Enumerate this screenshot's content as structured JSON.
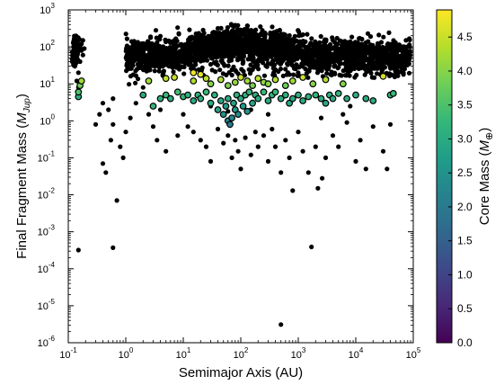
{
  "chart_data": {
    "type": "scatter",
    "xlabel": "Semimajor Axis (AU)",
    "ylabel_main": "Final Fragment Mass (",
    "ylabel_sym": "M",
    "ylabel_sub": "Jup",
    "ylabel_close": ")",
    "xscale": "log",
    "yscale": "log",
    "xlim": [
      0.1,
      100000
    ],
    "ylim": [
      1e-06,
      1000
    ],
    "grid": false,
    "x_ticks": [
      {
        "base": "10",
        "exp": "-1"
      },
      {
        "base": "10",
        "exp": "0"
      },
      {
        "base": "10",
        "exp": "1"
      },
      {
        "base": "10",
        "exp": "2"
      },
      {
        "base": "10",
        "exp": "3"
      },
      {
        "base": "10",
        "exp": "4"
      },
      {
        "base": "10",
        "exp": "5"
      }
    ],
    "y_ticks": [
      {
        "base": "10",
        "exp": "-6"
      },
      {
        "base": "10",
        "exp": "-5"
      },
      {
        "base": "10",
        "exp": "-4"
      },
      {
        "base": "10",
        "exp": "-3"
      },
      {
        "base": "10",
        "exp": "-2"
      },
      {
        "base": "10",
        "exp": "-1"
      },
      {
        "base": "10",
        "exp": "0"
      },
      {
        "base": "10",
        "exp": "1"
      },
      {
        "base": "10",
        "exp": "2"
      },
      {
        "base": "10",
        "exp": "3"
      }
    ],
    "colorbar": {
      "label_main": "Core Mass (",
      "label_sym": "M",
      "label_sub": "⊕",
      "label_close": ")",
      "range": [
        0,
        4.9
      ],
      "ticks": [
        "0.0",
        "0.5",
        "1.0",
        "1.5",
        "2.0",
        "2.5",
        "3.0",
        "3.5",
        "4.0",
        "4.5"
      ],
      "colormap": "viridis",
      "colors": [
        "#440154",
        "#482878",
        "#3e4989",
        "#31688e",
        "#26828e",
        "#1f9e89",
        "#35b779",
        "#6ece58",
        "#b5de2b",
        "#fde725"
      ]
    },
    "series": [
      {
        "points_no_core": [
          [
            0.15,
            0.00032
          ],
          [
            0.6,
            0.00037
          ],
          [
            500,
            3.1e-06
          ],
          [
            1700,
            0.00039
          ],
          [
            0.4,
            0.07
          ],
          [
            0.45,
            0.04
          ],
          [
            0.7,
            0.007
          ],
          [
            0.9,
            0.1
          ],
          [
            0.55,
            0.3
          ],
          [
            0.6,
            0.8
          ],
          [
            0.8,
            0.2
          ],
          [
            1.0,
            0.5
          ],
          [
            1.2,
            1.2
          ],
          [
            0.35,
            1.5
          ],
          [
            0.4,
            3
          ],
          [
            0.5,
            2
          ],
          [
            0.6,
            4
          ],
          [
            0.3,
            0.8
          ],
          [
            1.5,
            3
          ],
          [
            2.0,
            8
          ],
          [
            2.5,
            1.5
          ],
          [
            3,
            0.7
          ],
          [
            4,
            2
          ],
          [
            3.5,
            0.3
          ],
          [
            5,
            0.15
          ],
          [
            8,
            0.4
          ],
          [
            10,
            1.5
          ],
          [
            12,
            0.7
          ],
          [
            15,
            0.5
          ],
          [
            20,
            0.3
          ],
          [
            25,
            0.2
          ],
          [
            30,
            0.08
          ],
          [
            40,
            0.6
          ],
          [
            50,
            0.25
          ],
          [
            60,
            0.4
          ],
          [
            70,
            0.1
          ],
          [
            80,
            0.3
          ],
          [
            90,
            0.15
          ],
          [
            100,
            0.05
          ],
          [
            120,
            0.35
          ],
          [
            150,
            0.12
          ],
          [
            180,
            0.5
          ],
          [
            200,
            0.2
          ],
          [
            250,
            0.4
          ],
          [
            300,
            0.08
          ],
          [
            350,
            0.6
          ],
          [
            400,
            0.2
          ],
          [
            500,
            0.04
          ],
          [
            600,
            0.3
          ],
          [
            700,
            0.1
          ],
          [
            800,
            0.013
          ],
          [
            1000,
            0.5
          ],
          [
            1200,
            0.15
          ],
          [
            1500,
            0.04
          ],
          [
            2000,
            0.2
          ],
          [
            2200,
            0.015
          ],
          [
            2600,
            0.028
          ],
          [
            3000,
            0.1
          ],
          [
            4000,
            0.4
          ],
          [
            5000,
            0.2
          ],
          [
            7000,
            0.9
          ],
          [
            10000,
            0.08
          ],
          [
            12000,
            0.3
          ],
          [
            15000,
            0.05
          ],
          [
            20000,
            0.7
          ],
          [
            30000,
            0.15
          ],
          [
            35000,
            0.05
          ],
          [
            40000,
            0.8
          ],
          [
            6000,
            1.5
          ],
          [
            8000,
            2.5
          ],
          [
            2500,
            1.2
          ],
          [
            300,
            1.5
          ],
          [
            150,
            2
          ],
          [
            60,
            1.8
          ],
          [
            30,
            2.5
          ],
          [
            0.17,
            80
          ],
          [
            0.16,
            40
          ],
          [
            0.15,
            20
          ],
          [
            0.14,
            60
          ],
          [
            0.13,
            30
          ],
          [
            0.18,
            150
          ],
          [
            0.17,
            120
          ],
          [
            0.16,
            100
          ],
          [
            0.14,
            12
          ],
          [
            0.15,
            8
          ],
          [
            0.18,
            60
          ],
          [
            0.19,
            90
          ],
          [
            0.13,
            50
          ]
        ],
        "points_core": [
          [
            0.15,
            4.5,
            3.0
          ],
          [
            0.16,
            9,
            3.8
          ],
          [
            0.15,
            6,
            3.5
          ],
          [
            0.17,
            12,
            4.2
          ],
          [
            2,
            5,
            3.0
          ],
          [
            3,
            2.5,
            3.2
          ],
          [
            4,
            4,
            3.1
          ],
          [
            5,
            5,
            3.3
          ],
          [
            6,
            4,
            3.0
          ],
          [
            8,
            6,
            3.4
          ],
          [
            10,
            4.5,
            3.2
          ],
          [
            12,
            5,
            3.1
          ],
          [
            15,
            3.5,
            3.0
          ],
          [
            18,
            5,
            3.2
          ],
          [
            20,
            4,
            3.1
          ],
          [
            25,
            6,
            3.3
          ],
          [
            30,
            3,
            3.0
          ],
          [
            35,
            5,
            3.1
          ],
          [
            40,
            2,
            2.8
          ],
          [
            45,
            3.5,
            2.9
          ],
          [
            50,
            1.5,
            2.5
          ],
          [
            55,
            2.5,
            2.7
          ],
          [
            60,
            1,
            2.2
          ],
          [
            60,
            4,
            3.0
          ],
          [
            65,
            0.8,
            2.0
          ],
          [
            70,
            1.2,
            2.3
          ],
          [
            75,
            3,
            2.8
          ],
          [
            80,
            2,
            2.6
          ],
          [
            85,
            5,
            3.1
          ],
          [
            90,
            1.5,
            2.4
          ],
          [
            100,
            4,
            3.0
          ],
          [
            110,
            2.5,
            2.7
          ],
          [
            120,
            5,
            3.1
          ],
          [
            130,
            1.8,
            2.5
          ],
          [
            140,
            6,
            3.2
          ],
          [
            160,
            3,
            2.9
          ],
          [
            180,
            5,
            3.1
          ],
          [
            200,
            4,
            3.0
          ],
          [
            250,
            6,
            3.3
          ],
          [
            300,
            3.5,
            3.0
          ],
          [
            350,
            5,
            3.2
          ],
          [
            400,
            6,
            3.3
          ],
          [
            500,
            4,
            3.0
          ],
          [
            600,
            5,
            3.1
          ],
          [
            700,
            3,
            2.9
          ],
          [
            800,
            4,
            3.0
          ],
          [
            1000,
            5,
            3.1
          ],
          [
            1200,
            3.5,
            3.0
          ],
          [
            1500,
            4.5,
            3.1
          ],
          [
            2000,
            5,
            3.2
          ],
          [
            2500,
            4,
            3.0
          ],
          [
            3000,
            3,
            2.9
          ],
          [
            3500,
            5,
            3.1
          ],
          [
            4000,
            4,
            3.0
          ],
          [
            5000,
            5.5,
            3.2
          ],
          [
            7000,
            4,
            3.0
          ],
          [
            10000,
            5,
            3.1
          ],
          [
            15000,
            4,
            3.0
          ],
          [
            20000,
            3.5,
            3.0
          ],
          [
            40000,
            5,
            3.2
          ],
          [
            45000,
            5.5,
            3.3
          ],
          [
            5,
            14,
            4.4
          ],
          [
            7,
            15,
            4.5
          ],
          [
            15,
            12,
            4.3
          ],
          [
            25,
            14,
            4.4
          ],
          [
            30,
            10,
            4.0
          ],
          [
            45,
            13,
            4.3
          ],
          [
            60,
            9,
            3.9
          ],
          [
            80,
            11,
            4.1
          ],
          [
            100,
            15,
            4.5
          ],
          [
            130,
            12,
            4.2
          ],
          [
            160,
            9,
            3.9
          ],
          [
            200,
            14,
            4.4
          ],
          [
            250,
            11,
            4.1
          ],
          [
            300,
            10,
            4.0
          ],
          [
            400,
            13,
            4.3
          ],
          [
            600,
            9,
            3.8
          ],
          [
            800,
            12,
            4.2
          ],
          [
            1200,
            15,
            4.5
          ],
          [
            1800,
            10,
            4.0
          ],
          [
            3000,
            13,
            4.3
          ],
          [
            6000,
            10,
            4.0
          ],
          [
            30000,
            16,
            4.6
          ],
          [
            15,
            20,
            4.8
          ],
          [
            20,
            18,
            4.7
          ],
          [
            2.5,
            12,
            4.2
          ]
        ]
      }
    ]
  }
}
